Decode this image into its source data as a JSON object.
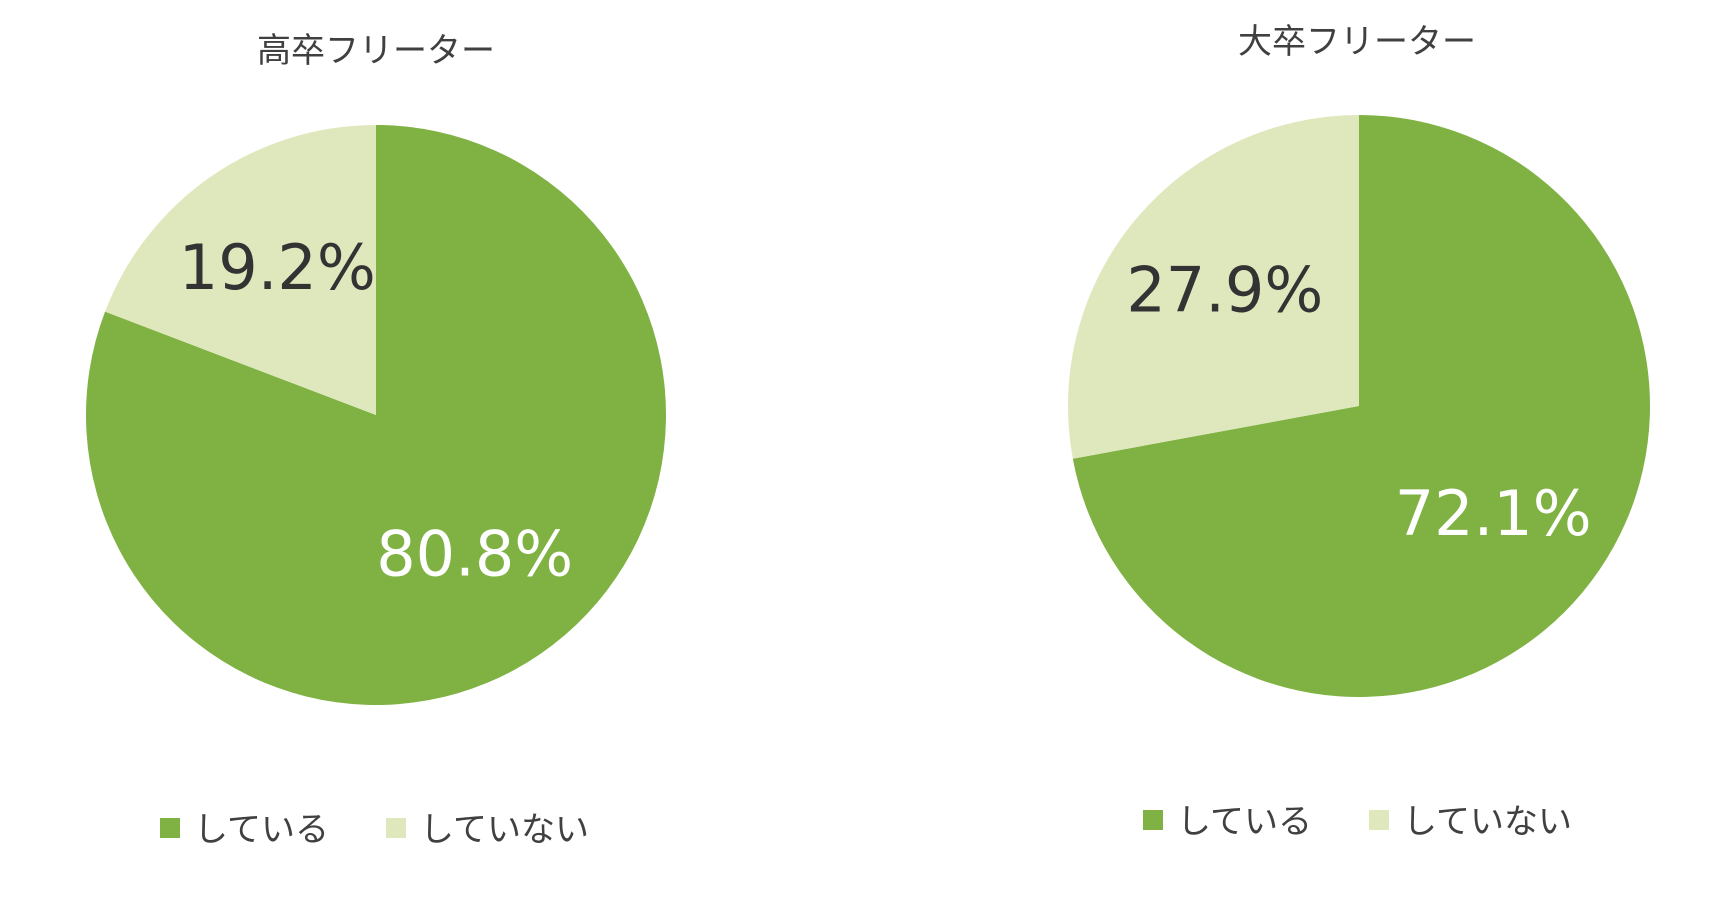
{
  "colors": {
    "doing": "#7fb243",
    "not_doing": "#dfe8bd",
    "label_dark": "#333333",
    "label_light": "#ffffff",
    "title": "#404040"
  },
  "legend": {
    "doing_label": "している",
    "not_doing_label": "していない"
  },
  "chart_data": [
    {
      "type": "pie",
      "title": "高卒フリーター",
      "slices": [
        {
          "key": "doing",
          "label": "している",
          "value": 80.8,
          "display": "80.8%"
        },
        {
          "key": "not_doing",
          "label": "していない",
          "value": 19.2,
          "display": "19.2%"
        }
      ],
      "start": "12 o'clock",
      "direction": "clockwise",
      "legend_position": "bottom"
    },
    {
      "type": "pie",
      "title": "大卒フリーター",
      "slices": [
        {
          "key": "doing",
          "label": "している",
          "value": 72.1,
          "display": "72.1%"
        },
        {
          "key": "not_doing",
          "label": "していない",
          "value": 27.9,
          "display": "27.9%"
        }
      ],
      "start": "12 o'clock",
      "direction": "clockwise",
      "legend_position": "bottom"
    }
  ]
}
